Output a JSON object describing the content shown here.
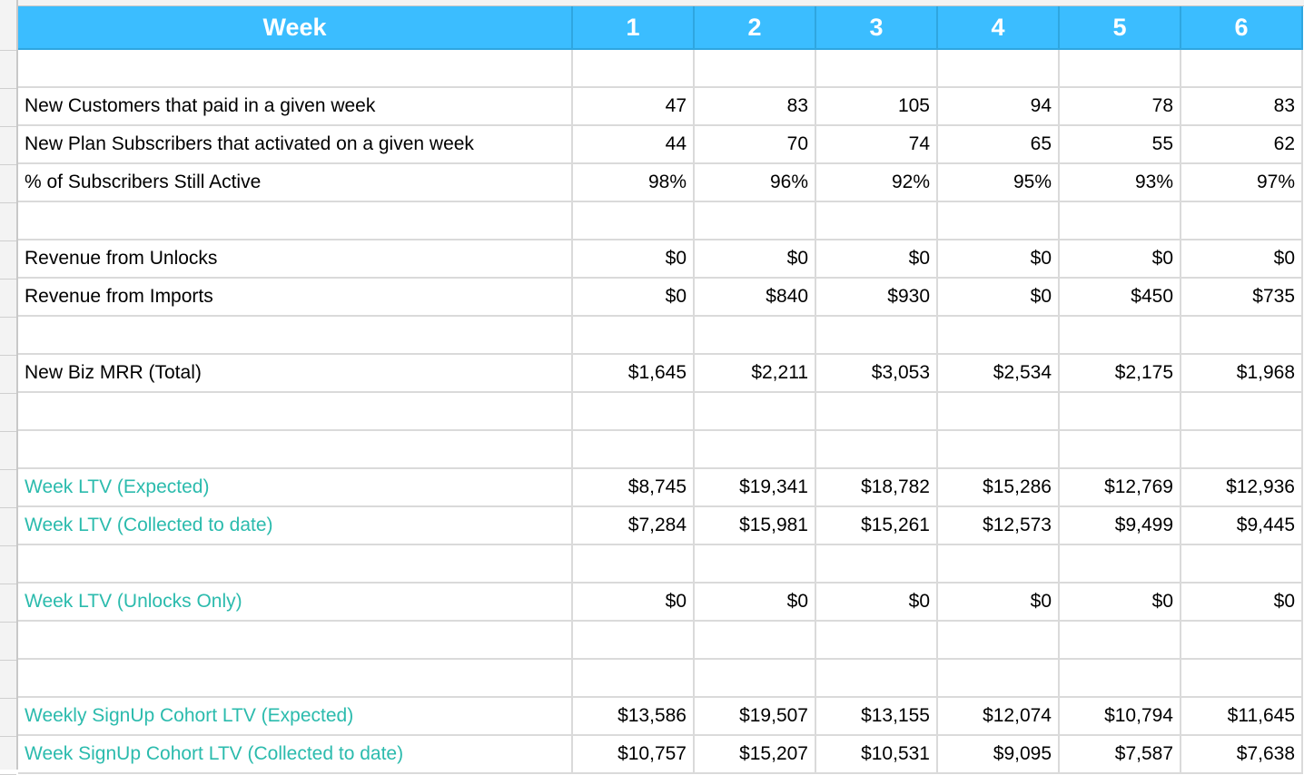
{
  "colors": {
    "header_bg": "#3bbdff",
    "header_text": "#ffffff",
    "teal_label": "#2bbbad"
  },
  "header": {
    "label": "Week",
    "weeks": [
      "1",
      "2",
      "3",
      "4",
      "5",
      "6"
    ]
  },
  "rows": [
    {
      "type": "blank"
    },
    {
      "label": "New Customers that paid in a given week",
      "values": [
        "47",
        "83",
        "105",
        "94",
        "78",
        "83"
      ],
      "style": "normal"
    },
    {
      "label": "New Plan Subscribers that activated on a given week",
      "values": [
        "44",
        "70",
        "74",
        "65",
        "55",
        "62"
      ],
      "style": "normal"
    },
    {
      "label": "% of Subscribers Still Active",
      "values": [
        "98%",
        "96%",
        "92%",
        "95%",
        "93%",
        "97%"
      ],
      "style": "normal"
    },
    {
      "type": "blank"
    },
    {
      "label": "Revenue from Unlocks",
      "values": [
        "$0",
        "$0",
        "$0",
        "$0",
        "$0",
        "$0"
      ],
      "style": "normal"
    },
    {
      "label": "Revenue from Imports",
      "values": [
        "$0",
        "$840",
        "$930",
        "$0",
        "$450",
        "$735"
      ],
      "style": "normal"
    },
    {
      "type": "blank"
    },
    {
      "label": "New Biz MRR (Total)",
      "values": [
        "$1,645",
        "$2,211",
        "$3,053",
        "$2,534",
        "$2,175",
        "$1,968"
      ],
      "style": "normal"
    },
    {
      "type": "blank"
    },
    {
      "type": "blank"
    },
    {
      "label": "Week LTV (Expected)",
      "values": [
        "$8,745",
        "$19,341",
        "$18,782",
        "$15,286",
        "$12,769",
        "$12,936"
      ],
      "style": "teal"
    },
    {
      "label": "Week LTV (Collected to date)",
      "values": [
        "$7,284",
        "$15,981",
        "$15,261",
        "$12,573",
        "$9,499",
        "$9,445"
      ],
      "style": "teal"
    },
    {
      "type": "blank"
    },
    {
      "label": "Week LTV (Unlocks Only)",
      "values": [
        "$0",
        "$0",
        "$0",
        "$0",
        "$0",
        "$0"
      ],
      "style": "teal"
    },
    {
      "type": "blank"
    },
    {
      "type": "blank"
    },
    {
      "label": "Weekly SignUp Cohort LTV (Expected)",
      "values": [
        "$13,586",
        "$19,507",
        "$13,155",
        "$12,074",
        "$10,794",
        "$11,645"
      ],
      "style": "teal"
    },
    {
      "label": "Week SignUp Cohort LTV (Collected to date)",
      "values": [
        "$10,757",
        "$15,207",
        "$10,531",
        "$9,095",
        "$7,587",
        "$7,638"
      ],
      "style": "teal"
    }
  ]
}
